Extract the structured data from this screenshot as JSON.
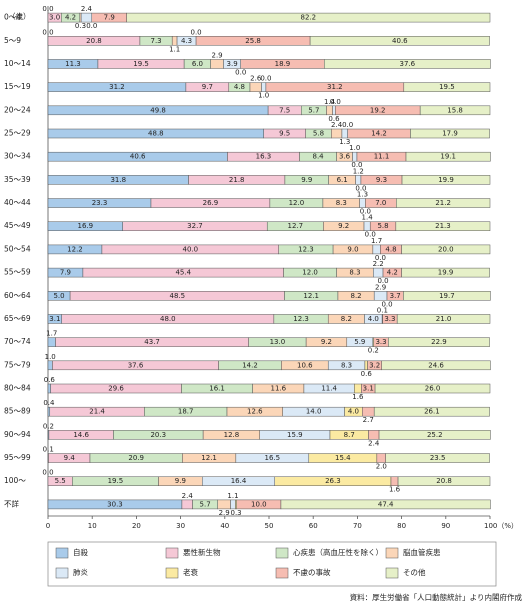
{
  "chart_data": {
    "type": "bar",
    "orientation": "horizontal",
    "stacked": true,
    "y_label": "（歳）",
    "source": "資料：厚生労働省「人口動態統計」より内閣府作成",
    "categories": [
      "0～4",
      "5～9",
      "10～14",
      "15～19",
      "20～24",
      "25～29",
      "30～34",
      "35～39",
      "40～44",
      "45～49",
      "50～54",
      "55～59",
      "60～64",
      "65～69",
      "70～74",
      "75～79",
      "80～84",
      "85～89",
      "90～94",
      "95～99",
      "100～",
      "不詳"
    ],
    "xlim": [
      0,
      100
    ],
    "xticks": [
      0,
      10,
      20,
      30,
      40,
      50,
      60,
      70,
      80,
      90,
      {
        "value": 100,
        "label": "100（%）"
      }
    ],
    "series": [
      {
        "name": "自殺",
        "color": "#a9cbea",
        "values": [
          0.0,
          0.0,
          11.3,
          31.2,
          49.8,
          48.8,
          40.6,
          31.8,
          23.3,
          16.9,
          12.2,
          7.9,
          5.0,
          3.1,
          1.7,
          1.0,
          0.6,
          0.4,
          0.2,
          0.1,
          0.0,
          30.3
        ],
        "value_labels": [
          "0.0",
          "0.0",
          "11.3",
          "31.2",
          "49.8",
          "48.8",
          "40.6",
          "31.8",
          "23.3",
          "16.9",
          "12.2",
          "7.9",
          "5.0",
          "3.1",
          "1.7",
          "1.0",
          "0.6",
          "0.4",
          "0.2",
          "0.1",
          "0.0",
          "30.3"
        ]
      },
      {
        "name": "悪性新生物",
        "color": "#f5c8d6",
        "values": [
          3.0,
          20.8,
          19.5,
          9.7,
          7.5,
          9.5,
          16.3,
          21.8,
          26.9,
          32.7,
          40.0,
          45.4,
          48.5,
          48.0,
          43.7,
          37.6,
          29.6,
          21.4,
          14.6,
          9.4,
          5.5,
          2.4
        ],
        "value_labels": [
          "3.0",
          "20.8",
          "19.5",
          "9.7",
          "7.5",
          "9.5",
          "16.3",
          "21.8",
          "26.9",
          "32.7",
          "40.0",
          "45.4",
          "48.5",
          "48.0",
          "43.7",
          "37.6",
          "29.6",
          "21.4",
          "14.6",
          "9.4",
          "5.5",
          "2.4"
        ]
      },
      {
        "name": "心疾患（高血圧性を除く）",
        "color": "#cfe7c6",
        "values": [
          4.2,
          7.3,
          6.0,
          4.8,
          5.7,
          5.8,
          8.4,
          9.9,
          12.0,
          12.7,
          12.3,
          12.0,
          12.1,
          12.3,
          13.0,
          14.2,
          16.1,
          18.7,
          20.3,
          20.9,
          19.5,
          5.7
        ],
        "value_labels": [
          "4.2",
          "7.3",
          "6.0",
          "4.8",
          "5.7",
          "5.8",
          "8.4",
          "9.9",
          "12.0",
          "12.7",
          "12.3",
          "12.0",
          "12.1",
          "12.3",
          "13.0",
          "14.2",
          "16.1",
          "18.7",
          "20.3",
          "20.9",
          "19.5",
          "5.7"
        ]
      },
      {
        "name": "脳血管疾患",
        "color": "#fbd6b8",
        "values": [
          0.3,
          1.1,
          2.9,
          2.6,
          1.4,
          2.4,
          3.6,
          6.1,
          8.3,
          9.2,
          9.0,
          8.3,
          8.2,
          8.2,
          9.2,
          10.6,
          11.6,
          12.6,
          12.8,
          12.1,
          9.9,
          2.9
        ],
        "value_labels": [
          "0.3",
          "1.1",
          "2.9",
          "2.6",
          "1.4",
          "2.4",
          "3.6",
          "6.1",
          "8.3",
          "9.2",
          "9.0",
          "8.3",
          "8.2",
          "8.2",
          "9.2",
          "10.6",
          "11.6",
          "12.6",
          "12.8",
          "12.1",
          "9.9",
          "2.9"
        ]
      },
      {
        "name": "肺炎",
        "color": "#dbe9f6",
        "values": [
          2.4,
          4.3,
          3.9,
          1.0,
          0.6,
          1.3,
          1.0,
          1.2,
          1.3,
          1.4,
          1.7,
          2.2,
          2.9,
          4.0,
          5.9,
          8.3,
          11.4,
          14.0,
          15.9,
          16.5,
          16.4,
          1.1
        ],
        "value_labels": [
          "2.4",
          "4.3",
          "3.9",
          "1.0",
          "0.6",
          "1.3",
          "1.0",
          "1.2",
          "1.3",
          "1.4",
          "1.7",
          "2.2",
          "2.9",
          "4.0",
          "5.9",
          "8.3",
          "11.4",
          "14.0",
          "15.9",
          "16.5",
          "16.4",
          "1.1"
        ]
      },
      {
        "name": "老衰",
        "color": "#fbeaa2",
        "values": [
          0.0,
          0.0,
          0.0,
          0.0,
          0.0,
          0.0,
          0.0,
          0.0,
          0.0,
          0.0,
          0.0,
          0.0,
          0.0,
          0.1,
          0.2,
          0.6,
          1.6,
          4.0,
          8.7,
          15.4,
          26.3,
          0.3
        ],
        "value_labels": [
          "0.0",
          "0.0",
          "0.0",
          "0.0",
          "0.0",
          "0.0",
          "0.0",
          "0.0",
          "0.0",
          "0.0",
          "0.0",
          "0.0",
          "0.0",
          "0.1",
          "0.2",
          "0.6",
          "1.6",
          "4.0",
          "8.7",
          "15.4",
          "26.3",
          "0.3"
        ]
      },
      {
        "name": "不慮の事故",
        "color": "#f6bdb2",
        "values": [
          7.9,
          25.8,
          18.9,
          31.2,
          19.2,
          14.2,
          11.1,
          9.3,
          7.0,
          5.8,
          4.8,
          4.2,
          3.7,
          3.3,
          3.3,
          3.2,
          3.1,
          2.7,
          2.4,
          2.0,
          1.6,
          10.0
        ],
        "value_labels": [
          "7.9",
          "25.8",
          "18.9",
          "31.2",
          "19.2",
          "14.2",
          "11.1",
          "9.3",
          "7.0",
          "5.8",
          "4.8",
          "4.2",
          "3.7",
          "3.3",
          "3.3",
          "3.2",
          "3.1",
          "2.7",
          "2.4",
          "2.0",
          "1.6",
          "10.0"
        ]
      },
      {
        "name": "その他",
        "color": "#e6f0c8",
        "values": [
          82.2,
          40.6,
          37.6,
          19.5,
          15.8,
          17.9,
          19.1,
          19.9,
          21.2,
          21.3,
          20.0,
          19.9,
          19.7,
          21.0,
          22.9,
          24.6,
          26.0,
          26.1,
          25.2,
          23.5,
          20.8,
          47.4
        ],
        "value_labels": [
          "82.2",
          "40.6",
          "37.6",
          "19.5",
          "15.8",
          "17.9",
          "19.1",
          "19.9",
          "21.2",
          "21.3",
          "20.0",
          "19.9",
          "19.7",
          "21.0",
          "22.9",
          "24.6",
          "26.0",
          "26.1",
          "25.2",
          "23.5",
          "20.8",
          "47.4"
        ]
      }
    ]
  }
}
